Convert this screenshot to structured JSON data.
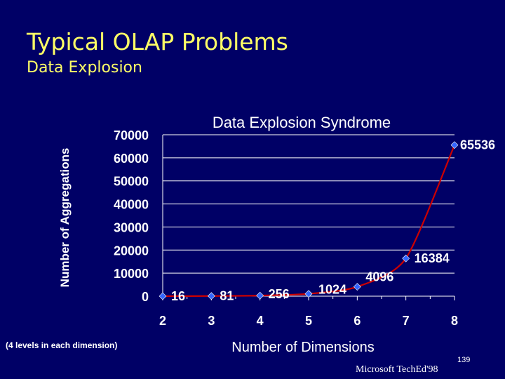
{
  "slide": {
    "title": "Typical OLAP Problems",
    "subtitle": "Data Explosion",
    "footnote": "(4 levels in each dimension)",
    "footer_brand": "Microsoft TechEd'98",
    "page_number": "139"
  },
  "colors": {
    "background": "#000066",
    "title": "#ffff66",
    "text": "#ffffff",
    "line": "#cc0000",
    "marker": "#3366ff",
    "grid": "#ffffff"
  },
  "chart_data": {
    "type": "line",
    "title": "Data Explosion Syndrome",
    "xlabel": "Number of Dimensions",
    "ylabel": "Number of Aggregations",
    "x": [
      2,
      3,
      4,
      5,
      6,
      7,
      8
    ],
    "series": [
      {
        "values": [
          16,
          81,
          256,
          1024,
          4096,
          16384,
          65536
        ],
        "labels": [
          "16",
          "81",
          "256",
          "1024",
          "4096",
          "16384",
          "65536"
        ]
      }
    ],
    "y_ticks": [
      0,
      10000,
      20000,
      30000,
      40000,
      50000,
      60000,
      70000
    ],
    "y_tick_labels": [
      "0",
      "10000",
      "20000",
      "30000",
      "40000",
      "50000",
      "60000",
      "70000"
    ],
    "x_tick_labels": [
      "2",
      "3",
      "4",
      "5",
      "6",
      "7",
      "8"
    ],
    "ylim": [
      0,
      70000
    ],
    "xlim": [
      2,
      8
    ],
    "grid": true,
    "legend": "none"
  }
}
